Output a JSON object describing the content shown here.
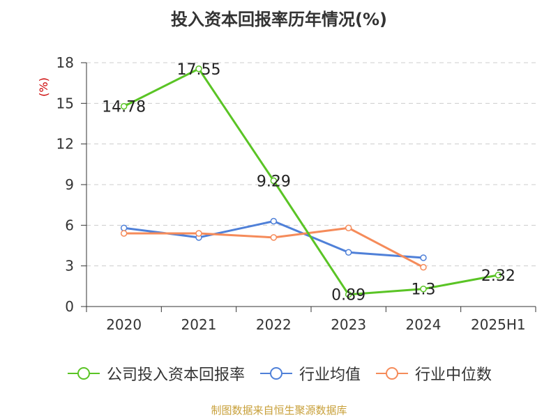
{
  "title": "投入资本回报率历年情况(%)",
  "source": "制图数据来自恒生聚源数据库",
  "chart_data": {
    "type": "line",
    "title": "投入资本回报率历年情况(%)",
    "ylabel": "(%)",
    "categories": [
      "2020",
      "2021",
      "2022",
      "2023",
      "2024",
      "2025H1"
    ],
    "yticks": [
      "0",
      "3",
      "6",
      "9",
      "12",
      "15",
      "18"
    ],
    "ylim": [
      0,
      18
    ],
    "grid": true,
    "legend_position": "bottom",
    "series": [
      {
        "name": "公司投入资本回报率",
        "color": "#5ac425",
        "values": [
          14.78,
          17.55,
          9.29,
          0.89,
          1.3,
          2.32
        ],
        "labels": [
          "14.78",
          "17.55",
          "9.29",
          "0.89",
          "1.3",
          "2.32"
        ]
      },
      {
        "name": "行业均值",
        "color": "#4f80d8",
        "values": [
          5.8,
          5.1,
          6.3,
          4.0,
          3.6,
          null
        ]
      },
      {
        "name": "行业中位数",
        "color": "#f58b5a",
        "values": [
          5.4,
          5.4,
          5.1,
          5.8,
          2.9,
          null
        ]
      }
    ]
  }
}
